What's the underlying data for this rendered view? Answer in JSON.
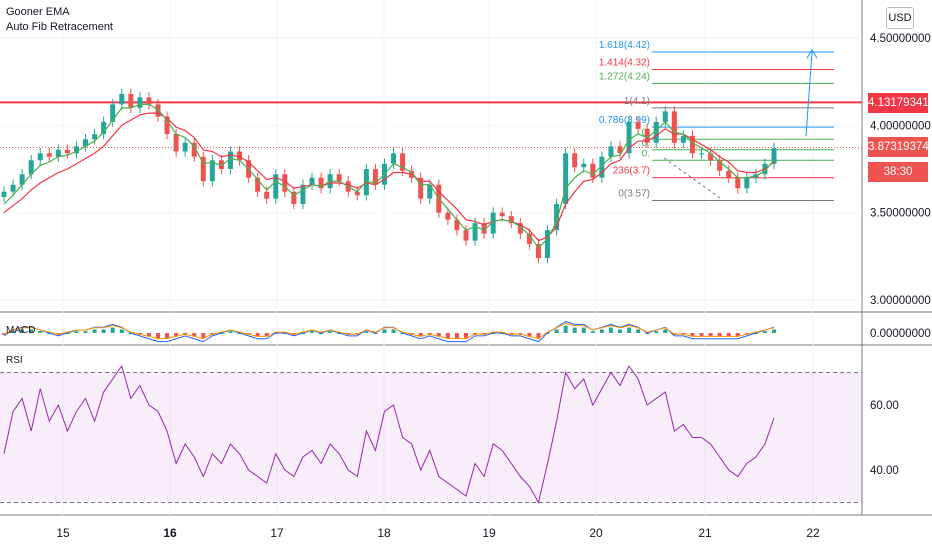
{
  "indicators": {
    "ema_label": "Gooner EMA",
    "fib_label": "Auto Fib Retracement",
    "macd_label": "MACD",
    "rsi_label": "RSI"
  },
  "currency_button": "USD",
  "price_axis": {
    "ticks": [
      "4.50000000",
      "4.00000000",
      "3.50000000",
      "3.00000000"
    ],
    "macd_tick": "0.00000000",
    "rsi_ticks": [
      "60.00",
      "40.00"
    ]
  },
  "price_tags": {
    "level": "4.13179341",
    "last": "3.87319374",
    "countdown": "38:30"
  },
  "x_axis": {
    "labels": [
      "15",
      "16",
      "17",
      "18",
      "19",
      "20",
      "21",
      "22"
    ]
  },
  "fib_levels": [
    {
      "label": "1.618(4.42)",
      "color": "#2196f3"
    },
    {
      "label": "1.414(4.32)",
      "color": "#f23645"
    },
    {
      "label": "1.272(4.24)",
      "color": "#4caf50"
    },
    {
      "label": "1(4.1)",
      "color": "#787b86"
    },
    {
      "label": "0.786(3.99)",
      "color": "#2196f3"
    },
    {
      "label": "0.",
      "color": "#4caf50"
    },
    {
      "label": "0.",
      "color": "#4caf50"
    },
    {
      "label": "0.",
      "color": "#4caf50"
    },
    {
      "label": "236(3.7)",
      "color": "#f23645"
    },
    {
      "label": "0(3.57)",
      "color": "#787b86"
    }
  ],
  "chart_data": {
    "type": "candlestick",
    "x_labels": [
      "15",
      "16",
      "17",
      "18",
      "19",
      "20",
      "21",
      "22"
    ],
    "ylim": [
      2.97,
      4.6
    ],
    "close": [
      3.62,
      3.66,
      3.72,
      3.8,
      3.84,
      3.82,
      3.86,
      3.84,
      3.88,
      3.92,
      3.95,
      4.02,
      4.12,
      4.18,
      4.1,
      4.16,
      4.12,
      4.05,
      3.95,
      3.85,
      3.9,
      3.82,
      3.68,
      3.8,
      3.75,
      3.85,
      3.8,
      3.7,
      3.62,
      3.58,
      3.72,
      3.62,
      3.55,
      3.66,
      3.7,
      3.64,
      3.72,
      3.68,
      3.62,
      3.6,
      3.75,
      3.66,
      3.78,
      3.84,
      3.74,
      3.7,
      3.58,
      3.66,
      3.5,
      3.46,
      3.4,
      3.34,
      3.44,
      3.38,
      3.5,
      3.48,
      3.44,
      3.38,
      3.32,
      3.24,
      3.4,
      3.55,
      3.84,
      3.76,
      3.78,
      3.7,
      3.82,
      3.88,
      3.84,
      4.02,
      3.98,
      3.9,
      4.02,
      4.08,
      3.9,
      3.94,
      3.84,
      3.84,
      3.8,
      3.74,
      3.7,
      3.64,
      3.7,
      3.72,
      3.78,
      3.87
    ],
    "ema_fast": [
      3.55,
      3.6,
      3.66,
      3.72,
      3.77,
      3.79,
      3.82,
      3.83,
      3.85,
      3.88,
      3.91,
      3.96,
      4.03,
      4.1,
      4.1,
      4.12,
      4.12,
      4.09,
      4.03,
      3.95,
      3.93,
      3.88,
      3.78,
      3.79,
      3.77,
      3.81,
      3.8,
      3.75,
      3.69,
      3.63,
      3.68,
      3.65,
      3.6,
      3.63,
      3.66,
      3.65,
      3.68,
      3.68,
      3.65,
      3.62,
      3.68,
      3.67,
      3.72,
      3.78,
      3.76,
      3.73,
      3.66,
      3.66,
      3.58,
      3.52,
      3.46,
      3.4,
      3.42,
      3.4,
      3.45,
      3.46,
      3.45,
      3.42,
      3.37,
      3.3,
      3.35,
      3.45,
      3.64,
      3.7,
      3.74,
      3.72,
      3.77,
      3.82,
      3.83,
      3.92,
      3.95,
      3.93,
      3.97,
      4.02,
      3.96,
      3.95,
      3.9,
      3.87,
      3.84,
      3.79,
      3.75,
      3.7,
      3.7,
      3.71,
      3.74,
      3.8
    ],
    "ema_slow": [
      3.5,
      3.54,
      3.58,
      3.63,
      3.67,
      3.7,
      3.73,
      3.75,
      3.78,
      3.81,
      3.84,
      3.88,
      3.94,
      4.0,
      4.03,
      4.06,
      4.07,
      4.07,
      4.04,
      3.99,
      3.97,
      3.93,
      3.86,
      3.85,
      3.82,
      3.83,
      3.82,
      3.79,
      3.74,
      3.69,
      3.7,
      3.68,
      3.64,
      3.65,
      3.66,
      3.65,
      3.67,
      3.67,
      3.66,
      3.64,
      3.67,
      3.66,
      3.69,
      3.73,
      3.73,
      3.72,
      3.68,
      3.68,
      3.62,
      3.57,
      3.52,
      3.46,
      3.45,
      3.43,
      3.45,
      3.46,
      3.45,
      3.43,
      3.4,
      3.34,
      3.36,
      3.42,
      3.55,
      3.62,
      3.68,
      3.69,
      3.73,
      3.78,
      3.8,
      3.87,
      3.91,
      3.91,
      3.94,
      3.98,
      3.95,
      3.95,
      3.92,
      3.89,
      3.86,
      3.82,
      3.79,
      3.74,
      3.73,
      3.73,
      3.75,
      3.79
    ],
    "rsi": [
      45,
      58,
      62,
      52,
      65,
      55,
      60,
      52,
      58,
      62,
      55,
      64,
      68,
      72,
      62,
      66,
      60,
      58,
      52,
      42,
      48,
      44,
      38,
      45,
      42,
      48,
      45,
      40,
      38,
      36,
      45,
      40,
      38,
      44,
      46,
      42,
      48,
      45,
      40,
      38,
      52,
      46,
      58,
      60,
      50,
      48,
      40,
      46,
      38,
      36,
      34,
      32,
      42,
      38,
      48,
      46,
      42,
      38,
      35,
      30,
      42,
      55,
      70,
      65,
      68,
      60,
      65,
      70,
      66,
      72,
      68,
      60,
      62,
      64,
      52,
      54,
      50,
      50,
      48,
      44,
      40,
      38,
      42,
      44,
      48,
      56
    ],
    "macd_hist": [
      -0.01,
      0.01,
      0.02,
      0.02,
      0.01,
      0.0,
      -0.01,
      0.0,
      0.01,
      0.01,
      0.02,
      0.02,
      0.03,
      0.02,
      0.0,
      -0.01,
      -0.02,
      -0.03,
      -0.03,
      -0.02,
      -0.01,
      -0.02,
      -0.03,
      -0.01,
      0.0,
      0.01,
      0.0,
      -0.01,
      -0.02,
      -0.02,
      0.0,
      0.0,
      -0.01,
      0.0,
      0.01,
      0.0,
      0.01,
      0.0,
      -0.01,
      -0.01,
      0.01,
      0.0,
      0.02,
      0.02,
      0.0,
      -0.01,
      -0.02,
      -0.01,
      -0.02,
      -0.03,
      -0.03,
      -0.03,
      -0.01,
      -0.01,
      0.0,
      0.0,
      -0.01,
      -0.01,
      -0.02,
      -0.03,
      0.0,
      0.02,
      0.04,
      0.03,
      0.03,
      0.01,
      0.02,
      0.03,
      0.02,
      0.03,
      0.02,
      0.0,
      0.01,
      0.02,
      -0.01,
      -0.01,
      -0.02,
      -0.02,
      -0.02,
      -0.02,
      -0.02,
      -0.02,
      -0.01,
      0.0,
      0.01,
      0.02
    ],
    "rsi_band": [
      30,
      70
    ],
    "rsi_ylim": [
      25,
      75
    ],
    "fib_prices": [
      4.42,
      4.32,
      4.24,
      4.1,
      3.99,
      3.92,
      3.86,
      3.8,
      3.7,
      3.57
    ],
    "horizontal_level": 4.13179341,
    "last_price": 3.87319374
  },
  "colors": {
    "up": "#26a69a",
    "down": "#ef5350",
    "ema_fast": "#4caf50",
    "ema_slow": "#f23645",
    "rsi": "#9c27b0",
    "level": "#f23645",
    "macd_line": "#2962ff",
    "signal_line": "#ff9800"
  }
}
